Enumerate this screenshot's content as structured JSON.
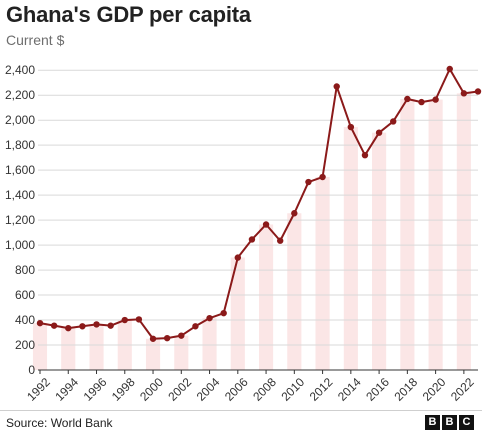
{
  "chart_data": {
    "type": "line",
    "title": "Ghana's GDP per capita",
    "subtitle": "Current $",
    "xlabel": "",
    "ylabel": "",
    "x": [
      1992,
      1993,
      1994,
      1995,
      1996,
      1997,
      1998,
      1999,
      2000,
      2001,
      2002,
      2003,
      2004,
      2005,
      2006,
      2007,
      2008,
      2009,
      2010,
      2011,
      2012,
      2013,
      2014,
      2015,
      2016,
      2017,
      2018,
      2019,
      2020,
      2021,
      2022,
      2023
    ],
    "series": [
      {
        "name": "",
        "values": [
          375,
          355,
          335,
          350,
          365,
          355,
          400,
          405,
          250,
          255,
          275,
          350,
          415,
          455,
          900,
          1045,
          1165,
          1035,
          1255,
          1505,
          1545,
          2270,
          1945,
          1720,
          1900,
          1990,
          2170,
          2145,
          2165,
          2410,
          2215,
          2230
        ]
      }
    ],
    "xticks": [
      "1992",
      "1994",
      "1996",
      "1998",
      "2000",
      "2002",
      "2004",
      "2006",
      "2008",
      "2010",
      "2012",
      "2014",
      "2016",
      "2018",
      "2020",
      "2022"
    ],
    "yticks": [
      "0",
      "200",
      "400",
      "600",
      "800",
      "1,000",
      "1,200",
      "1,400",
      "1,600",
      "1,800",
      "2,000",
      "2,200",
      "2,400"
    ],
    "ylim": [
      0,
      2450
    ],
    "grid": true,
    "line_color": "#8b1a1a",
    "band_color": "#fbe6e6"
  },
  "footer": {
    "source": "Source: World Bank",
    "logo": [
      "B",
      "B",
      "C"
    ]
  }
}
